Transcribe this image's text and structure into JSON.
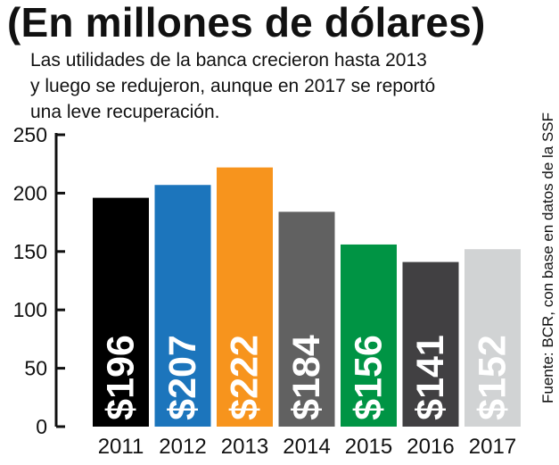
{
  "header": {
    "title": "(En millones de dólares)",
    "subtitle_lines": [
      "Las utilidades de la banca crecieron hasta 2013",
      "y luego se redujeron, aunque en 2017 se reportó",
      "una leve recuperación."
    ]
  },
  "source": "Fuente: BCR, con base en datos de la SSF",
  "chart_data": {
    "type": "bar",
    "title": "(En millones de dólares)",
    "xlabel": "",
    "ylabel": "",
    "ylim": [
      0,
      250
    ],
    "yticks": [
      0,
      50,
      100,
      150,
      200,
      250
    ],
    "grid": false,
    "categories": [
      "2011",
      "2012",
      "2013",
      "2014",
      "2015",
      "2016",
      "2017"
    ],
    "values": [
      196,
      207,
      222,
      184,
      156,
      141,
      152
    ],
    "data_labels": [
      "$196",
      "$207",
      "$222",
      "$184",
      "$156",
      "$141",
      "$152"
    ],
    "colors": [
      "#000000",
      "#1c75bc",
      "#f7941d",
      "#616161",
      "#009444",
      "#414042",
      "#d1d3d4"
    ]
  }
}
